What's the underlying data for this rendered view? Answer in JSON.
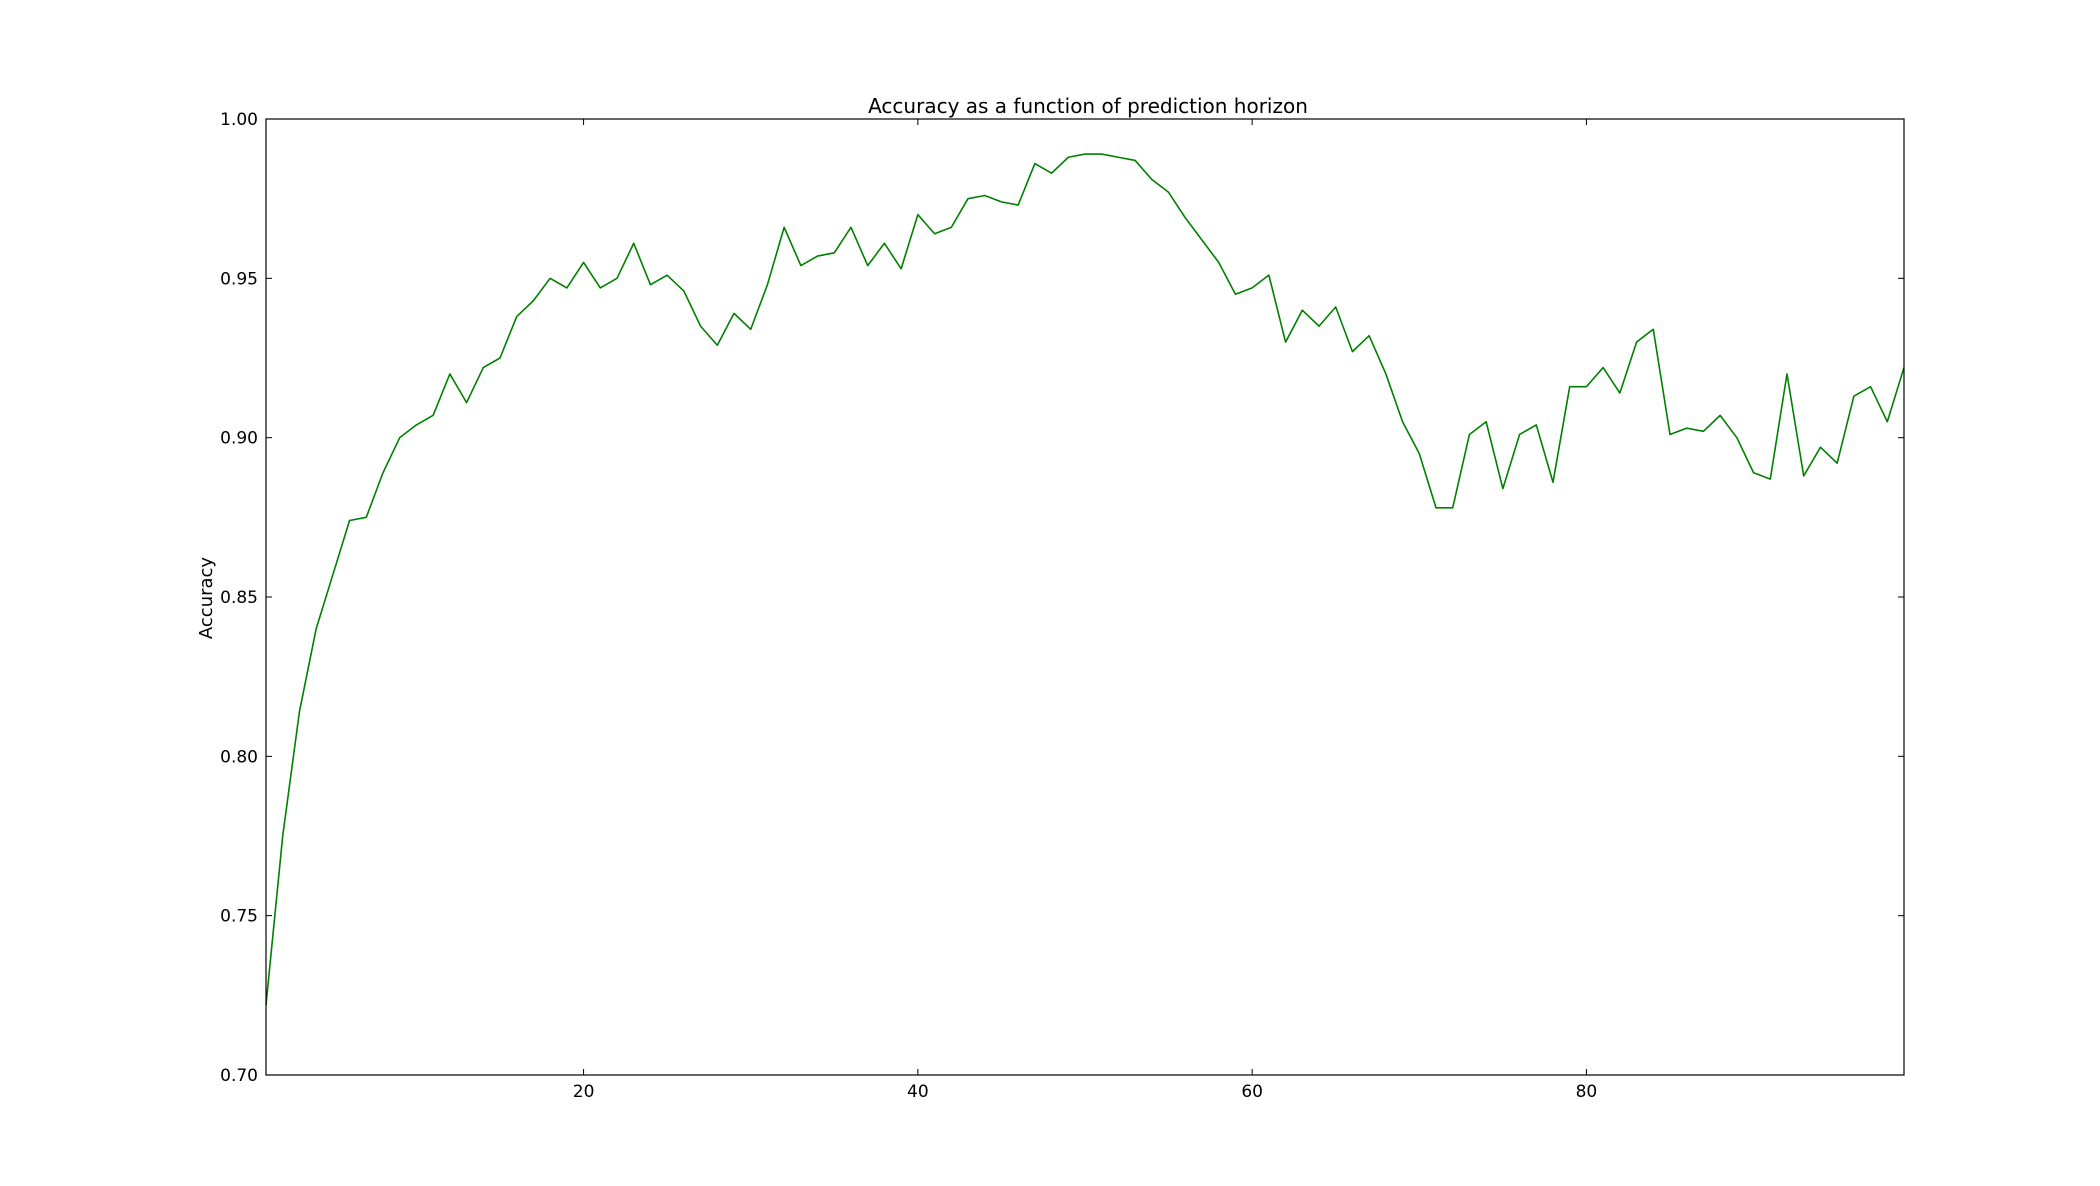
{
  "chart_data": {
    "type": "line",
    "title": "Accuracy as a function of prediction horizon",
    "xlabel": "",
    "ylabel": "Accuracy",
    "xlim": [
      1,
      99
    ],
    "ylim": [
      0.7,
      1.0
    ],
    "x_ticks": [
      20,
      40,
      60,
      80
    ],
    "y_ticks": [
      0.7,
      0.75,
      0.8,
      0.85,
      0.9,
      0.95,
      1.0
    ],
    "y_tick_labels": [
      "0.70",
      "0.75",
      "0.80",
      "0.85",
      "0.90",
      "0.95",
      "1.00"
    ],
    "x_tick_labels": [
      "20",
      "40",
      "60",
      "80"
    ],
    "grid": false,
    "color": "#008000",
    "series": [
      {
        "x": [
          1,
          2,
          3,
          4,
          5,
          6,
          7,
          8,
          9,
          10,
          11,
          12,
          13,
          14,
          15,
          16,
          17,
          18,
          19,
          20,
          21,
          22,
          23,
          24,
          25,
          26,
          27,
          28,
          29,
          30,
          31,
          32,
          33,
          34,
          35,
          36,
          37,
          38,
          39,
          40,
          41,
          42,
          43,
          44,
          45,
          46,
          47,
          48,
          49,
          50,
          51,
          52,
          53,
          54,
          55,
          56,
          57,
          58,
          59,
          60,
          61,
          62,
          63,
          64,
          65,
          66,
          67,
          68,
          69,
          70,
          71,
          72,
          73,
          74,
          75,
          76,
          77,
          78,
          79,
          80,
          81,
          82,
          83,
          84,
          85,
          86,
          87,
          88,
          89,
          90,
          91,
          92,
          93,
          94,
          95,
          96,
          97,
          98,
          99
        ],
        "values": [
          0.722,
          0.775,
          0.814,
          0.84,
          0.857,
          0.874,
          0.875,
          0.889,
          0.9,
          0.904,
          0.907,
          0.92,
          0.911,
          0.922,
          0.925,
          0.938,
          0.943,
          0.95,
          0.947,
          0.955,
          0.947,
          0.95,
          0.961,
          0.948,
          0.951,
          0.946,
          0.935,
          0.929,
          0.939,
          0.934,
          0.948,
          0.966,
          0.954,
          0.957,
          0.958,
          0.966,
          0.954,
          0.961,
          0.953,
          0.97,
          0.964,
          0.966,
          0.975,
          0.976,
          0.974,
          0.973,
          0.986,
          0.983,
          0.988,
          0.989,
          0.989,
          0.988,
          0.987,
          0.981,
          0.977,
          0.969,
          0.962,
          0.955,
          0.945,
          0.947,
          0.951,
          0.93,
          0.94,
          0.935,
          0.941,
          0.927,
          0.932,
          0.92,
          0.905,
          0.895,
          0.878,
          0.878,
          0.901,
          0.905,
          0.884,
          0.901,
          0.904,
          0.886,
          0.916,
          0.916,
          0.922,
          0.914,
          0.93,
          0.934,
          0.901,
          0.903,
          0.902,
          0.907,
          0.9,
          0.889,
          0.887,
          0.92,
          0.888,
          0.897,
          0.892,
          0.913,
          0.916,
          0.905,
          0.922
        ]
      }
    ]
  }
}
